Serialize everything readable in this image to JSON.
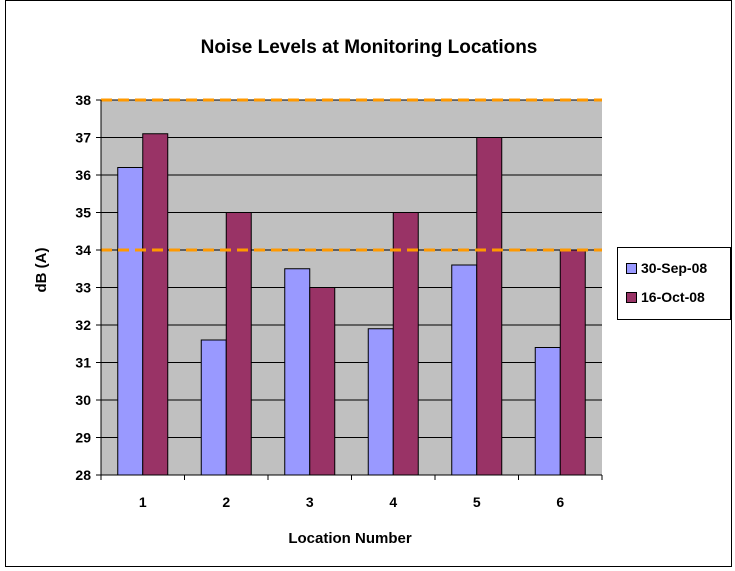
{
  "chart_data": {
    "type": "bar",
    "title": "Noise Levels at Monitoring Locations",
    "xlabel": "Location Number",
    "ylabel": "dB (A)",
    "categories": [
      "1",
      "2",
      "3",
      "4",
      "5",
      "6"
    ],
    "series": [
      {
        "name": "30-Sep-08",
        "values": [
          36.2,
          31.6,
          33.5,
          31.9,
          33.6,
          31.4
        ],
        "color": "#9999ff"
      },
      {
        "name": "16-Oct-08",
        "values": [
          37.1,
          35.0,
          33.0,
          35.0,
          37.0,
          34.0
        ],
        "color": "#993366"
      }
    ],
    "ylim": [
      28,
      38
    ],
    "yticks": [
      "28",
      "29",
      "30",
      "31",
      "32",
      "33",
      "34",
      "35",
      "36",
      "37",
      "38"
    ],
    "reference_lines": [
      38,
      34
    ],
    "reference_line_color": "#ff9900",
    "plot_background": "#c0c0c0",
    "grid": true,
    "legend_position": "right"
  }
}
